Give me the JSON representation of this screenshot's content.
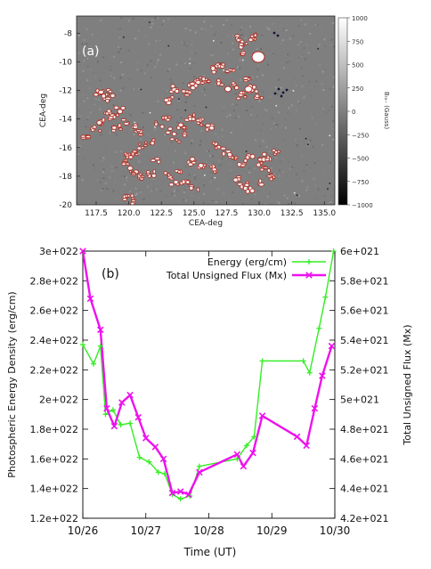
{
  "chart_data": [
    {
      "type": "heatmap",
      "panel_label": "(a)",
      "xlabel": "CEA-deg",
      "ylabel": "CEA-deg",
      "xticks": [
        117.5,
        120.0,
        122.5,
        125.0,
        127.5,
        130.0,
        132.5,
        135.0
      ],
      "yticks": [
        -8,
        -10,
        -12,
        -14,
        -16,
        -18,
        -20
      ],
      "xlim": [
        116.0,
        135.8
      ],
      "ylim": [
        -20,
        -6.8
      ],
      "colorbar": {
        "label": "Bᵣₐ₋ (Gauss)",
        "ticks": [
          1000,
          750,
          500,
          250,
          0,
          -250,
          -500,
          -750,
          -1000
        ],
        "range": [
          -1000,
          1000
        ],
        "cmap": "grayscale"
      },
      "contour_color": "#b0281d",
      "background_color": "#7f7f7f"
    },
    {
      "type": "line",
      "panel_label": "(b)",
      "xlabel": "Time (UT)",
      "ylabel": "Photospheric Energy Density (erg/cm)",
      "y2label": "Total Unsigned Flux (Mx)",
      "xticks": [
        "10/26",
        "10/27",
        "10/28",
        "10/29",
        "10/30"
      ],
      "xlim": [
        0,
        4
      ],
      "yticks": [
        "1.2e+022",
        "1.4e+022",
        "1.6e+022",
        "1.8e+022",
        "2e+022",
        "2.2e+022",
        "2.4e+022",
        "2.6e+022",
        "2.8e+022",
        "3e+022"
      ],
      "ylim": [
        1.2e+22,
        3e+22
      ],
      "y2ticks": [
        "4.2e+021",
        "4.4e+021",
        "4.6e+021",
        "4.8e+021",
        "5e+021",
        "5.2e+021",
        "5.4e+021",
        "5.6e+021",
        "5.8e+021",
        "6e+021"
      ],
      "y2lim": [
        4.2e+21,
        6e+21
      ],
      "legend_position": "top-right",
      "series": [
        {
          "name": "Energy (erg/cm)",
          "color": "#33ee22",
          "marker": "plus",
          "axis": "left",
          "x": [
            0.0,
            0.17,
            0.28,
            0.36,
            0.48,
            0.6,
            0.75,
            0.9,
            1.05,
            1.2,
            1.3,
            1.42,
            1.55,
            1.7,
            1.85,
            2.45,
            2.6,
            2.72,
            2.85,
            3.5,
            3.6,
            3.75,
            3.85,
            3.98
          ],
          "y": [
            2.37e+22,
            2.24e+22,
            2.36e+22,
            1.9e+22,
            1.93e+22,
            1.83e+22,
            1.84e+22,
            1.61e+22,
            1.58e+22,
            1.51e+22,
            1.5e+22,
            1.36e+22,
            1.33e+22,
            1.35e+22,
            1.55e+22,
            1.6e+22,
            1.69e+22,
            1.75e+22,
            2.26e+22,
            2.26e+22,
            2.18e+22,
            2.48e+22,
            2.69e+22,
            3e+22
          ]
        },
        {
          "name": "Total Unsigned Flux (Mx)",
          "color": "#ee11ee",
          "marker": "x",
          "axis": "right",
          "x": [
            0.0,
            0.12,
            0.28,
            0.38,
            0.5,
            0.62,
            0.75,
            0.88,
            1.0,
            1.15,
            1.28,
            1.42,
            1.55,
            1.68,
            1.85,
            2.45,
            2.55,
            2.7,
            2.85,
            3.4,
            3.55,
            3.68,
            3.8,
            3.95
          ],
          "y": [
            6e+21,
            5.68e+21,
            5.47e+21,
            4.94e+21,
            4.82e+21,
            4.98e+21,
            5.03e+21,
            4.88e+21,
            4.74e+21,
            4.68e+21,
            4.6e+21,
            4.37e+21,
            4.38e+21,
            4.36e+21,
            4.51e+21,
            4.63e+21,
            4.55e+21,
            4.64e+21,
            4.89e+21,
            4.75e+21,
            4.69e+21,
            4.94e+21,
            5.16e+21,
            5.36e+21
          ]
        }
      ]
    }
  ]
}
